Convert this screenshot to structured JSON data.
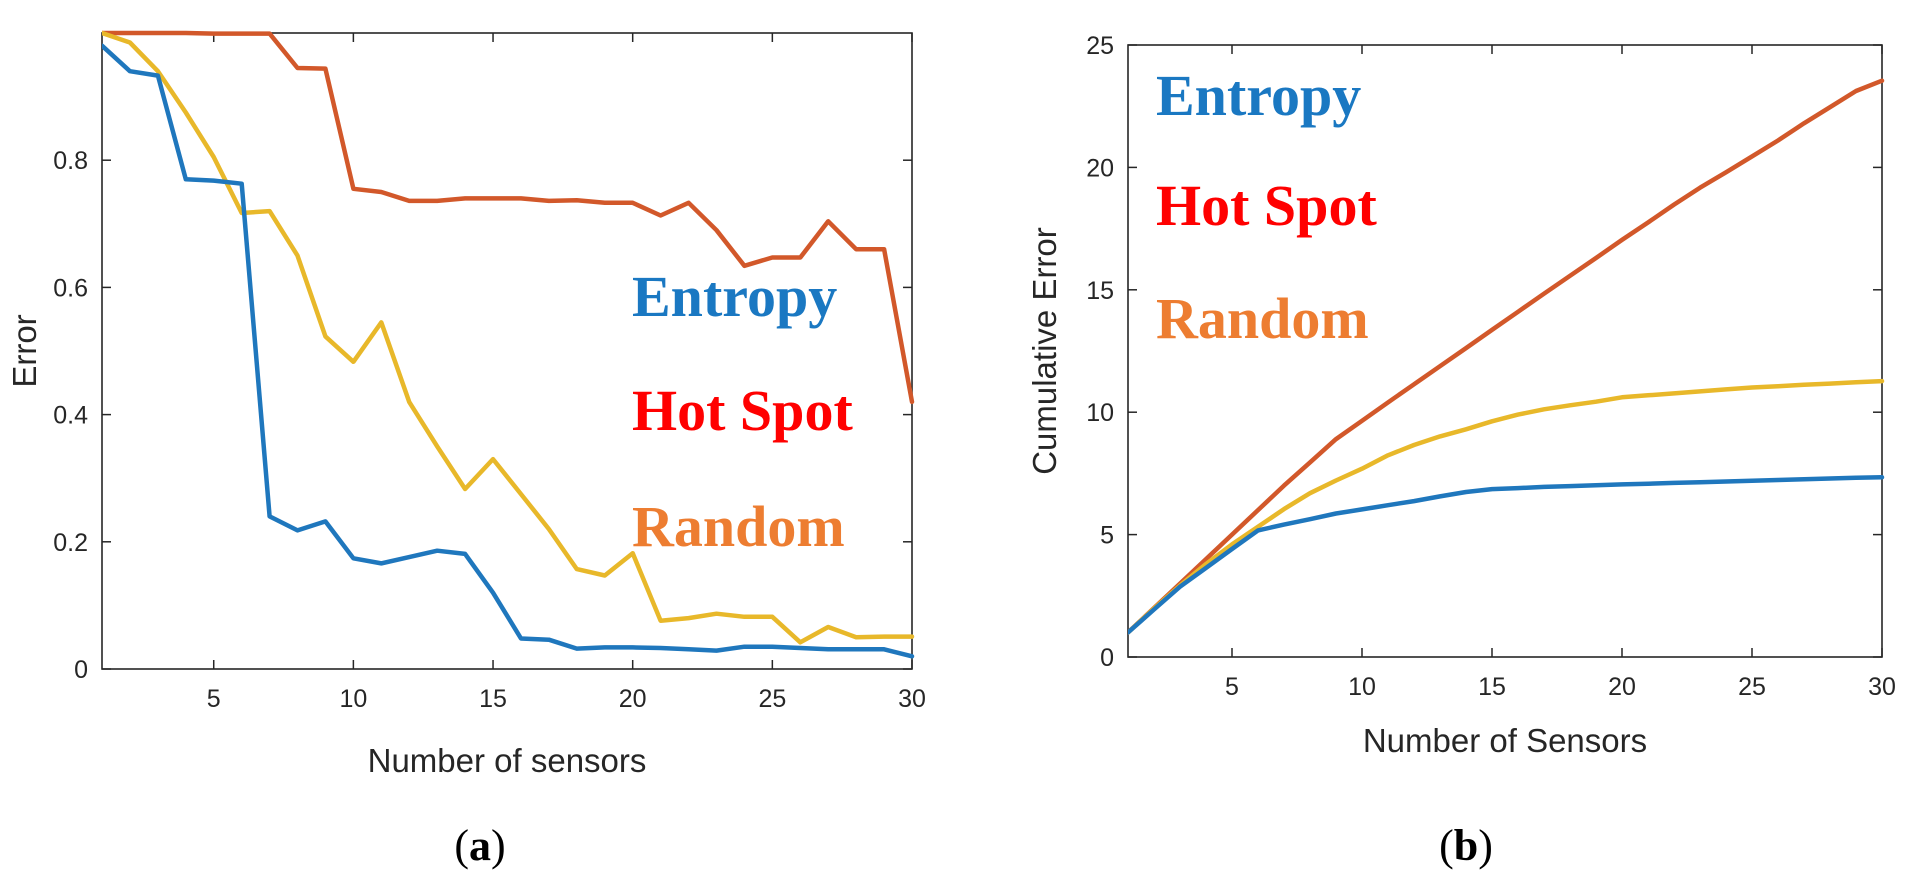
{
  "colors": {
    "entropy_line": "#1f77bd",
    "hotspot_line": "#d2582a",
    "random_line": "#e8b82a",
    "entropy_label": "#1a78c2",
    "hotspot_label": "#ff0000",
    "random_label": "#ed7d31",
    "axis": "#262626"
  },
  "chart_data": [
    {
      "type": "line",
      "caption_letter": "a",
      "caption_open": "(",
      "caption_close": ")",
      "title": "",
      "xlabel": "Number of sensors",
      "ylabel": "Error",
      "xlim": [
        1,
        30
      ],
      "ylim": [
        0,
        1.0
      ],
      "xticks": [
        5,
        10,
        15,
        20,
        25,
        30
      ],
      "xtick_labels": [
        "5",
        "10",
        "15",
        "20",
        "25",
        "30"
      ],
      "yticks": [
        0,
        0.2,
        0.4,
        0.6,
        0.8
      ],
      "ytick_labels": [
        "0",
        "0.2",
        "0.4",
        "0.6",
        "0.8"
      ],
      "grid": false,
      "legend_position": "right",
      "legend": [
        {
          "label": "Entropy",
          "color_key": "entropy_label"
        },
        {
          "label": "Hot Spot",
          "color_key": "hotspot_label"
        },
        {
          "label": "Random",
          "color_key": "random_label"
        }
      ],
      "x": [
        1,
        2,
        3,
        4,
        5,
        6,
        7,
        8,
        9,
        10,
        11,
        12,
        13,
        14,
        15,
        16,
        17,
        18,
        19,
        20,
        21,
        22,
        23,
        24,
        25,
        26,
        27,
        28,
        29,
        30
      ],
      "series": [
        {
          "name": "Hot Spot",
          "color_key": "hotspot_line",
          "values": [
            1.0,
            1.0,
            1.0,
            1.0,
            0.999,
            0.999,
            0.999,
            0.945,
            0.944,
            0.755,
            0.75,
            0.736,
            0.736,
            0.74,
            0.74,
            0.74,
            0.736,
            0.737,
            0.733,
            0.733,
            0.713,
            0.733,
            0.69,
            0.634,
            0.647,
            0.647,
            0.704,
            0.66,
            0.66,
            0.42
          ]
        },
        {
          "name": "Random",
          "color_key": "random_line",
          "values": [
            1.0,
            0.985,
            0.94,
            0.875,
            0.805,
            0.717,
            0.72,
            0.65,
            0.523,
            0.483,
            0.545,
            0.42,
            0.35,
            0.283,
            0.33,
            0.275,
            0.22,
            0.157,
            0.147,
            0.182,
            0.076,
            0.08,
            0.087,
            0.082,
            0.082,
            0.042,
            0.066,
            0.05,
            0.051,
            0.051
          ]
        },
        {
          "name": "Entropy",
          "color_key": "entropy_line",
          "values": [
            0.98,
            0.94,
            0.933,
            0.77,
            0.768,
            0.763,
            0.24,
            0.218,
            0.232,
            0.174,
            0.166,
            0.176,
            0.186,
            0.181,
            0.12,
            0.048,
            0.046,
            0.032,
            0.034,
            0.034,
            0.033,
            0.031,
            0.029,
            0.035,
            0.035,
            0.033,
            0.031,
            0.031,
            0.031,
            0.02
          ]
        }
      ]
    },
    {
      "type": "line",
      "caption_letter": "b",
      "caption_open": "(",
      "caption_close": ")",
      "title": "",
      "xlabel": "Number of Sensors",
      "ylabel": "Cumulative Error",
      "xlim": [
        1,
        30
      ],
      "ylim": [
        0,
        25
      ],
      "xticks": [
        5,
        10,
        15,
        20,
        25,
        30
      ],
      "xtick_labels": [
        "5",
        "10",
        "15",
        "20",
        "25",
        "30"
      ],
      "yticks": [
        0,
        5,
        10,
        15,
        20,
        25
      ],
      "ytick_labels": [
        "0",
        "5",
        "10",
        "15",
        "20",
        "25"
      ],
      "grid": false,
      "legend_position": "top-left",
      "legend": [
        {
          "label": "Entropy",
          "color_key": "entropy_label"
        },
        {
          "label": "Hot Spot",
          "color_key": "hotspot_label"
        },
        {
          "label": "Random",
          "color_key": "random_label"
        }
      ],
      "x": [
        1,
        2,
        3,
        4,
        5,
        6,
        7,
        8,
        9,
        10,
        11,
        12,
        13,
        14,
        15,
        16,
        17,
        18,
        19,
        20,
        21,
        22,
        23,
        24,
        25,
        26,
        27,
        28,
        29,
        30
      ],
      "series": [
        {
          "name": "Hot Spot",
          "color_key": "hotspot_line",
          "values": [
            1.0,
            2.0,
            3.0,
            4.0,
            5.0,
            6.0,
            7.0,
            7.95,
            8.9,
            9.65,
            10.4,
            11.14,
            11.88,
            12.62,
            13.36,
            14.1,
            14.84,
            15.57,
            16.3,
            17.04,
            17.75,
            18.48,
            19.17,
            19.8,
            20.45,
            21.1,
            21.8,
            22.46,
            23.12,
            23.54
          ]
        },
        {
          "name": "Random",
          "color_key": "random_line",
          "values": [
            1.0,
            1.98,
            2.92,
            3.8,
            4.6,
            5.32,
            6.04,
            6.69,
            7.21,
            7.69,
            8.24,
            8.66,
            9.01,
            9.3,
            9.63,
            9.9,
            10.12,
            10.28,
            10.43,
            10.61,
            10.69,
            10.77,
            10.85,
            10.93,
            11.01,
            11.06,
            11.12,
            11.17,
            11.22,
            11.27
          ]
        },
        {
          "name": "Entropy",
          "color_key": "entropy_line",
          "values": [
            1.0,
            1.94,
            2.87,
            3.64,
            4.41,
            5.17,
            5.41,
            5.63,
            5.86,
            6.03,
            6.2,
            6.37,
            6.56,
            6.74,
            6.86,
            6.9,
            6.95,
            6.98,
            7.02,
            7.05,
            7.08,
            7.11,
            7.14,
            7.17,
            7.2,
            7.23,
            7.26,
            7.29,
            7.32,
            7.34
          ]
        }
      ]
    }
  ]
}
